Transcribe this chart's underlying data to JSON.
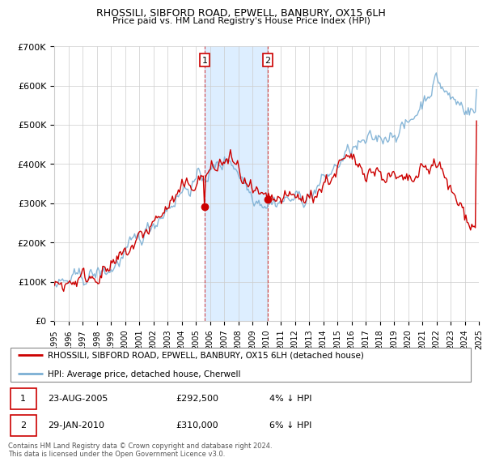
{
  "title": "RHOSSILI, SIBFORD ROAD, EPWELL, BANBURY, OX15 6LH",
  "subtitle": "Price paid vs. HM Land Registry's House Price Index (HPI)",
  "legend_line1": "RHOSSILI, SIBFORD ROAD, EPWELL, BANBURY, OX15 6LH (detached house)",
  "legend_line2": "HPI: Average price, detached house, Cherwell",
  "footnote": "Contains HM Land Registry data © Crown copyright and database right 2024.\nThis data is licensed under the Open Government Licence v3.0.",
  "sale1_date": "23-AUG-2005",
  "sale1_price": "£292,500",
  "sale1_hpi": "4% ↓ HPI",
  "sale2_date": "29-JAN-2010",
  "sale2_price": "£310,000",
  "sale2_hpi": "6% ↓ HPI",
  "price_color": "#cc0000",
  "hpi_color": "#7bafd4",
  "highlight_color": "#ddeeff",
  "ylim": [
    0,
    700000
  ],
  "yticks": [
    0,
    100000,
    200000,
    300000,
    400000,
    500000,
    600000,
    700000
  ],
  "ytick_labels": [
    "£0",
    "£100K",
    "£200K",
    "£300K",
    "£400K",
    "£500K",
    "£600K",
    "£700K"
  ],
  "sale1_year": 2005.64,
  "sale1_value": 292500,
  "sale2_year": 2010.08,
  "sale2_value": 310000,
  "xmin": 1995,
  "xmax": 2025
}
